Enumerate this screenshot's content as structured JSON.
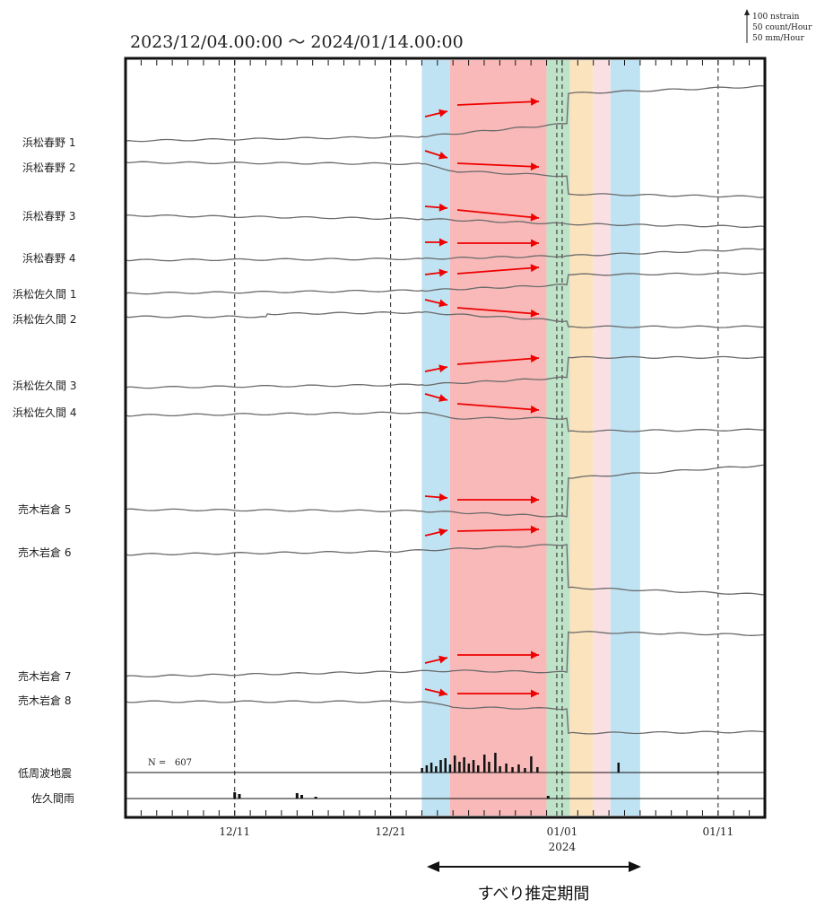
{
  "chart_data": {
    "type": "line",
    "title": "2023/12/04.00:00 ～ 2024/01/14.00:00",
    "x_range": [
      "2023-12-04",
      "2024-01-14"
    ],
    "x_ticks": [
      {
        "label": "12/11",
        "date": "2023-12-11"
      },
      {
        "label": "12/21",
        "date": "2023-12-21"
      },
      {
        "label": "01/01",
        "date": "2024-01-01",
        "sublabel": "2024"
      },
      {
        "label": "01/11",
        "date": "2024-01-11"
      }
    ],
    "scale_legend": [
      "100 nstrain",
      "50 count/Hour",
      "50 mm/Hour"
    ],
    "shaded_periods": [
      {
        "start": "2023-12-23.0",
        "end": "2023-12-24.8",
        "color": "#bfe3f3"
      },
      {
        "start": "2023-12-24.8",
        "end": "2023-12-31.0",
        "color": "#f9b9b9"
      },
      {
        "start": "2023-12-31.0",
        "end": "2024-01-01.5",
        "color": "#bfe3c9"
      },
      {
        "start": "2024-01-01.5",
        "end": "2024-01-03.0",
        "color": "#fbe3bd"
      },
      {
        "start": "2024-01-03.0",
        "end": "2024-01-04.1",
        "color": "#fbe0e3"
      },
      {
        "start": "2024-01-04.1",
        "end": "2024-01-06.0",
        "color": "#bfe3f3"
      }
    ],
    "series": [
      {
        "name": "浜松春野 1",
        "points": [
          [
            "2023-12-04",
            0
          ],
          [
            "2023-12-23",
            6
          ],
          [
            "2024-01-01.3",
            24
          ],
          [
            "2024-01-01.4",
            66
          ],
          [
            "2024-01-14",
            76
          ]
        ]
      },
      {
        "name": "浜松春野 2",
        "points": [
          [
            "2023-12-04",
            0
          ],
          [
            "2023-12-23",
            -2
          ],
          [
            "2023-12-25",
            -12
          ],
          [
            "2024-01-01.3",
            -19
          ],
          [
            "2024-01-01.4",
            -44
          ],
          [
            "2024-01-14",
            -48
          ]
        ]
      },
      {
        "name": "浜松春野 3",
        "points": [
          [
            "2023-12-04",
            0
          ],
          [
            "2023-12-23",
            -5
          ],
          [
            "2024-01-01.3",
            -12
          ],
          [
            "2024-01-14",
            -16
          ]
        ]
      },
      {
        "name": "浜松春野 4",
        "points": [
          [
            "2023-12-04",
            0
          ],
          [
            "2023-12-23",
            2
          ],
          [
            "2024-01-01.3",
            6
          ],
          [
            "2024-01-14",
            16
          ]
        ]
      },
      {
        "name": "浜松佐久間 1",
        "points": [
          [
            "2023-12-04",
            0
          ],
          [
            "2023-12-23",
            4
          ],
          [
            "2024-01-01.3",
            12
          ],
          [
            "2024-01-01.4",
            26
          ],
          [
            "2024-01-14",
            28
          ]
        ]
      },
      {
        "name": "浜松佐久間 2",
        "points": [
          [
            "2023-12-04",
            0
          ],
          [
            "2023-12-13",
            0
          ],
          [
            "2023-12-13.1",
            4
          ],
          [
            "2023-12-23",
            6
          ],
          [
            "2024-01-01.3",
            -6
          ],
          [
            "2024-01-01.4",
            -14
          ],
          [
            "2024-01-14",
            -14
          ]
        ]
      },
      {
        "name": "浜松佐久間 3",
        "points": [
          [
            "2023-12-04",
            0
          ],
          [
            "2023-12-23",
            4
          ],
          [
            "2024-01-01.3",
            14
          ],
          [
            "2024-01-01.4",
            42
          ],
          [
            "2024-01-14",
            42
          ]
        ]
      },
      {
        "name": "浜松佐久間 4",
        "points": [
          [
            "2023-12-04",
            0
          ],
          [
            "2023-12-23",
            4
          ],
          [
            "2023-12-25",
            -4
          ],
          [
            "2024-01-01.3",
            -4
          ],
          [
            "2024-01-01.4",
            -22
          ],
          [
            "2024-01-14",
            -20
          ]
        ]
      },
      {
        "name": "売木岩倉 5",
        "points": [
          [
            "2023-12-04",
            0
          ],
          [
            "2023-12-23",
            -2
          ],
          [
            "2024-01-01.3",
            -10
          ],
          [
            "2024-01-01.4",
            44
          ],
          [
            "2024-01-14",
            62
          ]
        ]
      },
      {
        "name": "売木岩倉 6",
        "points": [
          [
            "2023-12-04",
            0
          ],
          [
            "2023-12-21",
            4
          ],
          [
            "2024-01-01.3",
            14
          ],
          [
            "2024-01-01.4",
            -46
          ],
          [
            "2024-01-14",
            -56
          ]
        ]
      },
      {
        "name": "売木岩倉 7",
        "points": [
          [
            "2023-12-04",
            0
          ],
          [
            "2023-12-25",
            8
          ],
          [
            "2024-01-01.3",
            6
          ],
          [
            "2024-01-01.4",
            62
          ],
          [
            "2024-01-14",
            58
          ]
        ]
      },
      {
        "name": "売木岩倉 8",
        "points": [
          [
            "2023-12-04",
            0
          ],
          [
            "2023-12-23",
            0
          ],
          [
            "2023-12-25",
            -8
          ],
          [
            "2024-01-01.3",
            -10
          ],
          [
            "2024-01-01.4",
            -44
          ],
          [
            "2024-01-14",
            -42
          ]
        ]
      }
    ],
    "lfe_label": "低周波地震",
    "lfe_count_text": "N =   607",
    "lfe_bars": [
      [
        "2023-12-23.0",
        5
      ],
      [
        "2023-12-23.3",
        8
      ],
      [
        "2023-12-23.6",
        11
      ],
      [
        "2023-12-23.9",
        7
      ],
      [
        "2023-12-24.2",
        14
      ],
      [
        "2023-12-24.5",
        16
      ],
      [
        "2023-12-24.8",
        9
      ],
      [
        "2023-12-25.1",
        19
      ],
      [
        "2023-12-25.4",
        12
      ],
      [
        "2023-12-25.7",
        17
      ],
      [
        "2023-12-26.0",
        10
      ],
      [
        "2023-12-26.3",
        14
      ],
      [
        "2023-12-26.6",
        8
      ],
      [
        "2023-12-27.0",
        20
      ],
      [
        "2023-12-27.3",
        12
      ],
      [
        "2023-12-27.7",
        22
      ],
      [
        "2023-12-28.0",
        7
      ],
      [
        "2023-12-28.4",
        10
      ],
      [
        "2023-12-28.8",
        6
      ],
      [
        "2023-12-29.2",
        9
      ],
      [
        "2023-12-29.6",
        5
      ],
      [
        "2023-12-30.0",
        18
      ],
      [
        "2023-12-30.4",
        6
      ],
      [
        "2024-01-04.6",
        11
      ]
    ],
    "rain_label": "佐久間雨",
    "rain_bars": [
      [
        "2023-12-11.0",
        7
      ],
      [
        "2023-12-11.3",
        5
      ],
      [
        "2023-12-15.0",
        6
      ],
      [
        "2023-12-15.3",
        4
      ],
      [
        "2023-12-16.2",
        2
      ],
      [
        "2023-12-31.1",
        3
      ]
    ],
    "period_label": "すべり推定期間",
    "period_range": [
      "2023-12-23",
      "2024-01-06"
    ],
    "arrow_color": "#ee0000"
  }
}
